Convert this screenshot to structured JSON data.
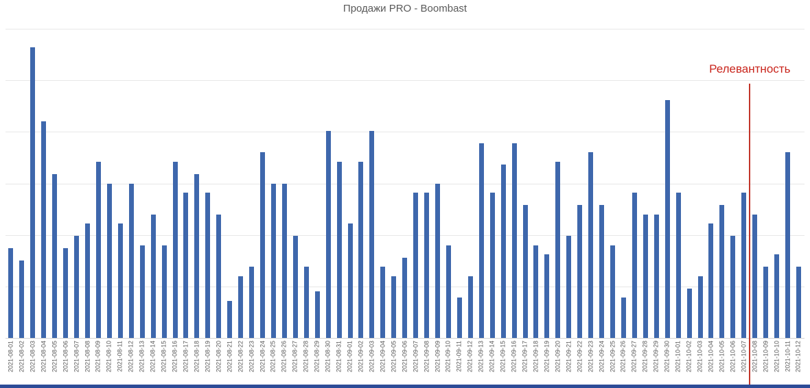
{
  "page": {
    "background": "#ffffff"
  },
  "chart_data": {
    "type": "bar",
    "title": "Продажи PRO - Boombast",
    "xlabel": "",
    "ylabel": "",
    "legend": "none",
    "grid": "horizontal, 6 equal intervals, no y tick labels",
    "y_axis_tick_labels_visible": false,
    "values_unit": "percent of y-axis max (chart shows no numeric axis labels)",
    "ylim": [
      0,
      100
    ],
    "x": [
      "2021-08-01",
      "2021-08-02",
      "2021-08-03",
      "2021-08-04",
      "2021-08-05",
      "2021-08-06",
      "2021-08-07",
      "2021-08-08",
      "2021-08-09",
      "2021-08-10",
      "2021-08-11",
      "2021-08-12",
      "2021-08-13",
      "2021-08-14",
      "2021-08-15",
      "2021-08-16",
      "2021-08-17",
      "2021-08-18",
      "2021-08-19",
      "2021-08-20",
      "2021-08-21",
      "2021-08-22",
      "2021-08-23",
      "2021-08-24",
      "2021-08-25",
      "2021-08-26",
      "2021-08-27",
      "2021-08-28",
      "2021-08-29",
      "2021-08-30",
      "2021-08-31",
      "2021-09-01",
      "2021-09-02",
      "2021-09-03",
      "2021-09-04",
      "2021-09-05",
      "2021-09-06",
      "2021-09-07",
      "2021-09-08",
      "2021-09-09",
      "2021-09-10",
      "2021-09-11",
      "2021-09-12",
      "2021-09-13",
      "2021-09-14",
      "2021-09-15",
      "2021-09-16",
      "2021-09-17",
      "2021-09-18",
      "2021-09-19",
      "2021-09-20",
      "2021-09-21",
      "2021-09-22",
      "2021-09-23",
      "2021-09-24",
      "2021-09-25",
      "2021-09-26",
      "2021-09-27",
      "2021-09-28",
      "2021-09-29",
      "2021-09-30",
      "2021-10-01",
      "2021-10-02",
      "2021-10-03",
      "2021-10-04",
      "2021-10-05",
      "2021-10-06",
      "2021-10-07",
      "2021-10-08",
      "2021-10-09",
      "2021-10-10",
      "2021-10-11",
      "2021-10-12"
    ],
    "values": [
      29,
      25,
      94,
      70,
      53,
      29,
      33,
      37,
      57,
      50,
      37,
      50,
      30,
      40,
      30,
      57,
      47,
      53,
      47,
      40,
      12,
      20,
      23,
      60,
      50,
      50,
      33,
      23,
      15,
      67,
      57,
      37,
      57,
      67,
      23,
      20,
      26,
      47,
      47,
      50,
      30,
      13,
      20,
      63,
      47,
      56,
      63,
      43,
      30,
      27,
      57,
      33,
      43,
      60,
      43,
      30,
      13,
      47,
      40,
      40,
      77,
      47,
      16,
      20,
      37,
      43,
      33,
      47,
      40,
      23,
      27,
      60,
      23
    ],
    "annotation": {
      "label": "Релевантность",
      "shape": "vertical-line",
      "between": [
        "2021-10-07",
        "2021-10-08"
      ],
      "line_color": "#c2352a",
      "label_color": "#c9251c"
    },
    "bar_color": "#3e67ac"
  },
  "colors": {
    "bar": "#3e67ac",
    "gridline": "#e7e7e7",
    "axis_line": "#d2d2d2",
    "title_text": "#595959",
    "tick_text": "#595959",
    "annotation_red": "#c2352a",
    "bottom_strip": "#2c4b97"
  }
}
